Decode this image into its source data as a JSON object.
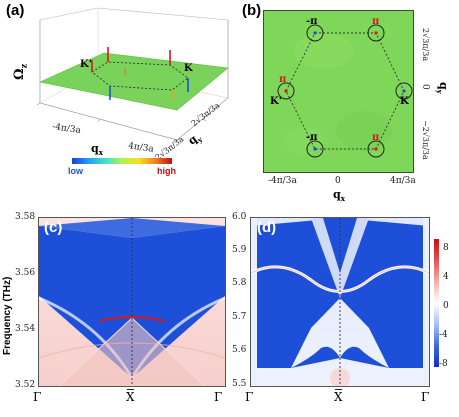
{
  "panel_a": {
    "label": "(a)",
    "z_axis": "Ω",
    "z_sub": "z",
    "x_axis": "q",
    "x_sub": "x",
    "y_axis": "q",
    "y_sub": "y",
    "x_ticks": [
      "-4π/3a",
      "4π/3a"
    ],
    "y_ticks": [
      "−2√3π/3a",
      "2√3π/3a"
    ],
    "points": [
      "K'",
      "K"
    ],
    "colorbar": {
      "low": "low",
      "high": "high"
    }
  },
  "panel_b": {
    "label": "(b)",
    "x_axis": "q",
    "x_sub": "x",
    "y_axis": "q",
    "y_sub": "y",
    "x_ticks": [
      "-4π/3a",
      "0",
      "4π/3a"
    ],
    "y_ticks": [
      "2√3π/3a",
      "0",
      "−2√3π/3a"
    ],
    "berry": [
      "-π",
      "π",
      "π",
      "π",
      "-π",
      "-π"
    ],
    "points": [
      "K'",
      "K"
    ]
  },
  "panel_c": {
    "label": "(c)",
    "ylabel": "Frequency (THz)",
    "y_ticks": [
      "3.58",
      "3.56",
      "3.54",
      "3.52"
    ],
    "x_ticks": [
      "Γ",
      "X",
      "Γ"
    ]
  },
  "panel_d": {
    "label": "(d)",
    "y_ticks": [
      "6.0",
      "5.9",
      "5.8",
      "5.7",
      "5.6",
      "5.5"
    ],
    "x_ticks": [
      "Γ",
      "X",
      "Γ"
    ],
    "colorbar_ticks": [
      "8",
      "4",
      "0",
      "-4",
      "-8"
    ]
  },
  "colors": {
    "green": "#7ed957",
    "blue": "#1e4fd8",
    "red": "#d7191c"
  }
}
